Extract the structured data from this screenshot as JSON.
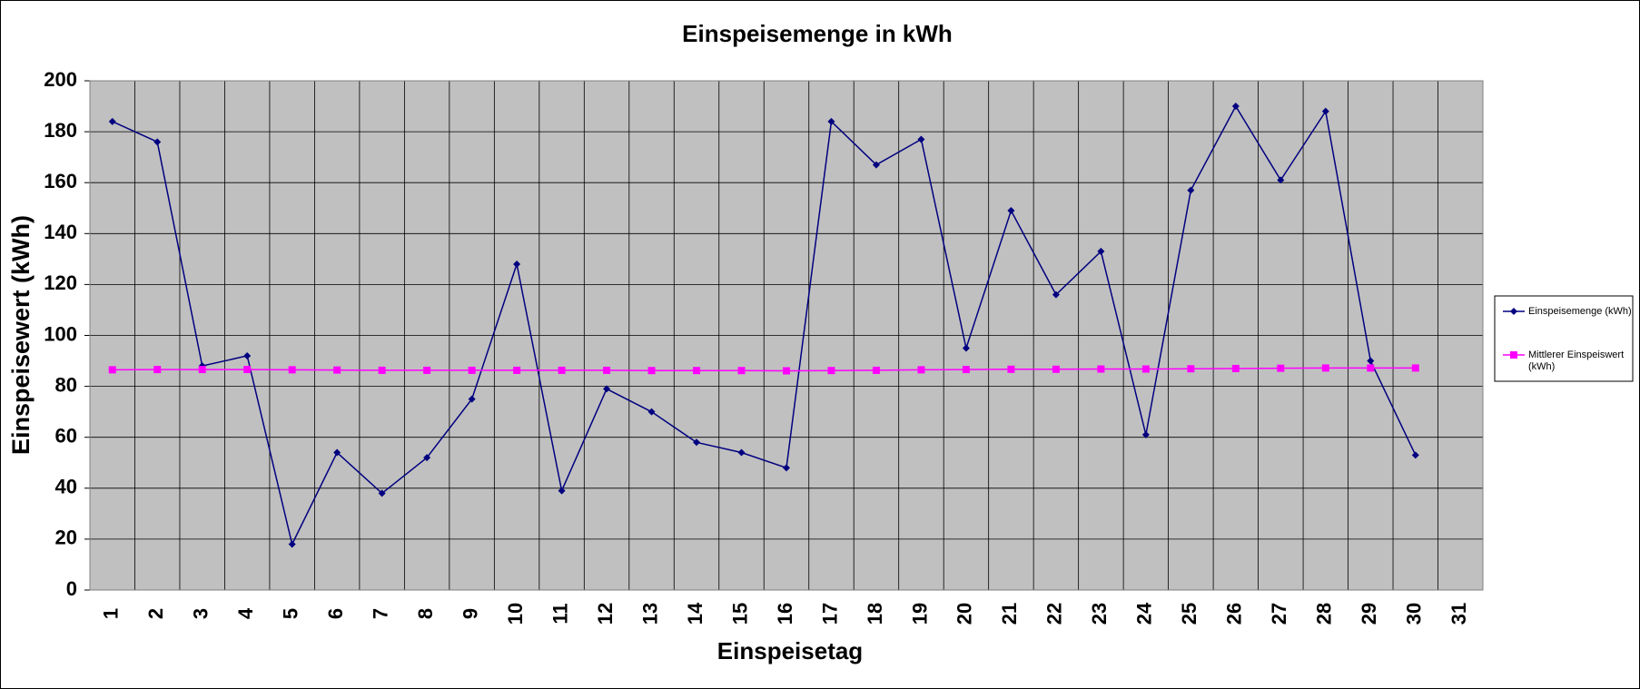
{
  "chart_data": {
    "type": "line",
    "title": "Einspeisemenge in kWh",
    "xlabel": "Einspeisetag",
    "ylabel": "Einspeisewert  (kWh)",
    "categories": [
      "1",
      "2",
      "3",
      "4",
      "5",
      "6",
      "7",
      "8",
      "9",
      "10",
      "11",
      "12",
      "13",
      "14",
      "15",
      "16",
      "17",
      "18",
      "19",
      "20",
      "21",
      "22",
      "23",
      "24",
      "25",
      "26",
      "27",
      "28",
      "29",
      "30",
      "31"
    ],
    "series": [
      {
        "name": "Einspeisemenge (kWh)",
        "color": "#000080",
        "marker": "diamond",
        "values": [
          184,
          176,
          88,
          92,
          18,
          54,
          38,
          52,
          75,
          128,
          39,
          79,
          70,
          58,
          54,
          48,
          184,
          167,
          177,
          95,
          149,
          116,
          133,
          61,
          157,
          190,
          161,
          188,
          90,
          53,
          null
        ]
      },
      {
        "name": "Mittlerer Einspeiswert (kWh)",
        "color": "#ff00ff",
        "marker": "square",
        "values": [
          86.5,
          86.6,
          86.6,
          86.6,
          86.5,
          86.4,
          86.3,
          86.3,
          86.3,
          86.3,
          86.3,
          86.3,
          86.2,
          86.2,
          86.2,
          86.1,
          86.2,
          86.3,
          86.5,
          86.6,
          86.7,
          86.7,
          86.8,
          86.8,
          86.9,
          87.0,
          87.1,
          87.2,
          87.2,
          87.2,
          null
        ]
      }
    ],
    "ylim": [
      0,
      200
    ],
    "yticks": [
      0,
      20,
      40,
      60,
      80,
      100,
      120,
      140,
      160,
      180,
      200
    ],
    "grid": true,
    "legend": "right"
  }
}
